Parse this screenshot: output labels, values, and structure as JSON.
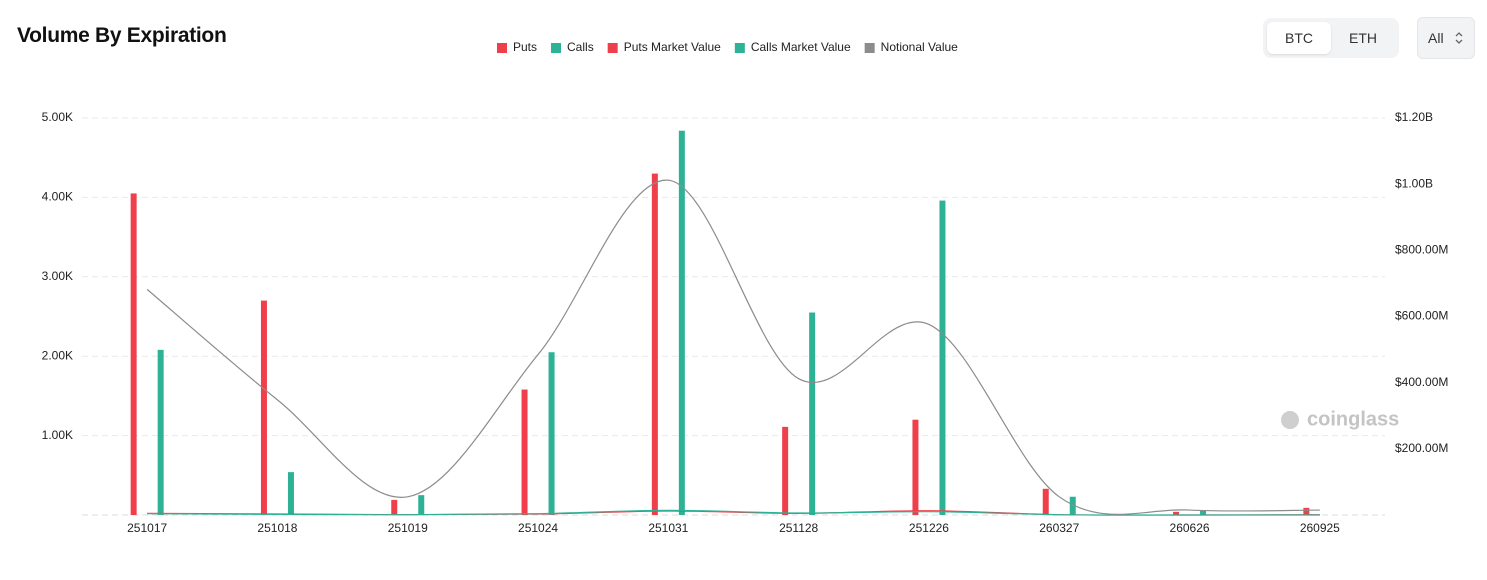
{
  "header": {
    "title": "Volume By Expiration",
    "toggle": [
      "BTC",
      "ETH"
    ],
    "active": 0,
    "dropdown": "All"
  },
  "chart_data": {
    "type": "bar",
    "categories": [
      "251017",
      "251018",
      "251019",
      "251024",
      "251031",
      "251128",
      "251226",
      "260327",
      "260626",
      "260925"
    ],
    "series": [
      {
        "name": "Puts",
        "type": "bar",
        "color": "#ef3f4b",
        "values": [
          4050,
          2700,
          190,
          1580,
          4300,
          1110,
          1200,
          330,
          40,
          90
        ]
      },
      {
        "name": "Calls",
        "type": "bar",
        "color": "#2db296",
        "values": [
          2080,
          540,
          250,
          2050,
          4840,
          2550,
          3960,
          230,
          60,
          0
        ]
      },
      {
        "name": "Puts Market Value",
        "type": "line",
        "axis": "y2",
        "color": "#ef3f4b",
        "values": [
          5000000,
          3000000,
          1000000,
          3000000,
          12000000,
          5000000,
          13000000,
          1000000,
          0,
          1000000
        ]
      },
      {
        "name": "Calls Market Value",
        "type": "line",
        "axis": "y2",
        "color": "#2db296",
        "values": [
          4000000,
          2000000,
          1000000,
          4000000,
          14000000,
          6000000,
          10000000,
          1000000,
          0,
          0
        ]
      },
      {
        "name": "Notional Value",
        "type": "line",
        "axis": "y2",
        "color": "#8c8c8c",
        "values": [
          682000000,
          348000000,
          55000000,
          485000000,
          1012000000,
          412000000,
          576000000,
          55000000,
          15000000,
          15000000
        ]
      }
    ],
    "ylim": [
      0,
      5000
    ],
    "yticks": [
      {
        "value": 1000,
        "label": "1.00K"
      },
      {
        "value": 2000,
        "label": "2.00K"
      },
      {
        "value": 3000,
        "label": "3.00K"
      },
      {
        "value": 4000,
        "label": "4.00K"
      },
      {
        "value": 5000,
        "label": "5.00K"
      }
    ],
    "y2lim": [
      0,
      1200000000
    ],
    "y2ticks": [
      {
        "value": 200000000,
        "label": "$200.00M"
      },
      {
        "value": 400000000,
        "label": "$400.00M"
      },
      {
        "value": 600000000,
        "label": "$600.00M"
      },
      {
        "value": 800000000,
        "label": "$800.00M"
      },
      {
        "value": 1000000000,
        "label": "$1.00B"
      },
      {
        "value": 1200000000,
        "label": "$1.20B"
      }
    ],
    "grid": true,
    "legend": "top",
    "watermark": "coinglass"
  }
}
